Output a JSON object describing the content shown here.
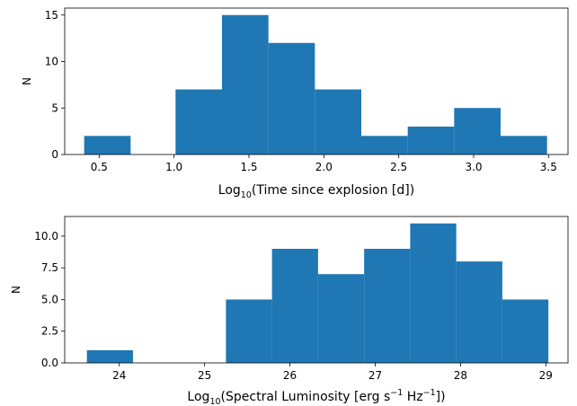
{
  "colors": {
    "bar": "#1f77b4",
    "axis": "#000000",
    "background": "#ffffff"
  },
  "chart_data": [
    {
      "type": "bar",
      "subtype": "histogram",
      "xlabel": {
        "main": "Log",
        "sub": "10",
        "rest": "(Time since explosion [d])"
      },
      "ylabel": "N",
      "xlim": [
        0.27,
        3.63
      ],
      "ylim": [
        0,
        15.75
      ],
      "xticks": [
        0.5,
        1.0,
        1.5,
        2.0,
        2.5,
        3.0,
        3.5
      ],
      "xtick_labels": [
        "0.5",
        "1.0",
        "1.5",
        "2.0",
        "2.5",
        "3.0",
        "3.5"
      ],
      "yticks": [
        0,
        5,
        10,
        15
      ],
      "ytick_labels": [
        "0",
        "5",
        "10",
        "15"
      ],
      "bins": [
        [
          0.4,
          0.71
        ],
        [
          0.71,
          1.01
        ],
        [
          1.01,
          1.32
        ],
        [
          1.32,
          1.63
        ],
        [
          1.63,
          1.94
        ],
        [
          1.94,
          2.25
        ],
        [
          2.25,
          2.56
        ],
        [
          2.56,
          2.87
        ],
        [
          2.87,
          3.18
        ],
        [
          3.18,
          3.49
        ]
      ],
      "values": [
        2,
        0,
        7,
        15,
        12,
        7,
        2,
        3,
        5,
        2
      ],
      "grid": false
    },
    {
      "type": "bar",
      "subtype": "histogram",
      "xlabel": {
        "main": "Log",
        "sub": "10",
        "rest": "(Spectral Luminosity [erg s",
        "sup1": "−1",
        "mid": " Hz",
        "sup2": "−1",
        "end": "])"
      },
      "ylabel": "N",
      "xlim": [
        23.36,
        29.26
      ],
      "ylim": [
        0,
        11.55
      ],
      "xticks": [
        24,
        25,
        26,
        27,
        28,
        29
      ],
      "xtick_labels": [
        "24",
        "25",
        "26",
        "27",
        "28",
        "29"
      ],
      "yticks": [
        0,
        2.5,
        5,
        7.5,
        10
      ],
      "ytick_labels": [
        "0.0",
        "2.5",
        "5.0",
        "7.5",
        "10.0"
      ],
      "bins": [
        [
          23.62,
          24.16
        ],
        [
          24.16,
          24.7
        ],
        [
          24.7,
          25.25
        ],
        [
          25.25,
          25.79
        ],
        [
          25.79,
          26.33
        ],
        [
          26.33,
          26.87
        ],
        [
          26.87,
          27.41
        ],
        [
          27.41,
          27.95
        ],
        [
          27.95,
          28.49
        ],
        [
          28.49,
          29.03
        ]
      ],
      "values": [
        1,
        0,
        0,
        5,
        9,
        7,
        9,
        11,
        8,
        5
      ],
      "grid": false
    }
  ]
}
